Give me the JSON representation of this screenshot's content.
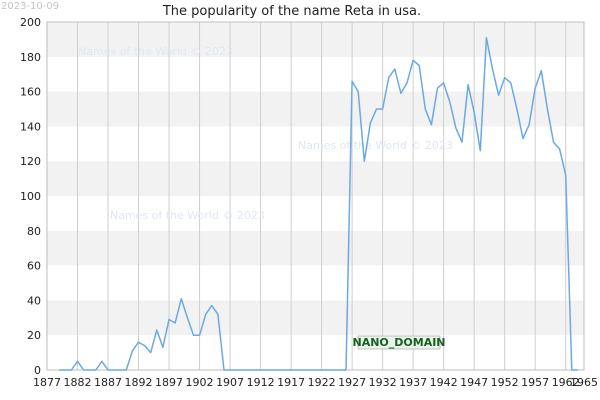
{
  "stamp": "2023-10-09",
  "watermark_text": "Names of the World © 2023",
  "badge_text": "NANO_DOMAIN",
  "chart_data": {
    "type": "line",
    "title": "The popularity of the name Reta in usa.",
    "xlabel": "",
    "ylabel": "",
    "xlim": [
      1877,
      1965
    ],
    "ylim": [
      0,
      200
    ],
    "x_ticks": [
      1877,
      1882,
      1887,
      1892,
      1897,
      1902,
      1907,
      1912,
      1917,
      1922,
      1927,
      1932,
      1937,
      1942,
      1947,
      1952,
      1957,
      1962,
      1965
    ],
    "y_ticks": [
      0,
      20,
      40,
      60,
      80,
      100,
      120,
      140,
      160,
      180,
      200
    ],
    "grid": true,
    "line_color": "#6aa9e6",
    "series": [
      {
        "x": [
          1879,
          1880,
          1881,
          1882,
          1883,
          1884,
          1885,
          1886,
          1887,
          1888,
          1889,
          1890,
          1891,
          1892,
          1893,
          1894,
          1895,
          1896,
          1897,
          1898,
          1899,
          1900,
          1901,
          1902,
          1903,
          1904,
          1905,
          1906,
          1907,
          1908,
          1909,
          1910,
          1911,
          1912,
          1913,
          1914,
          1915,
          1916,
          1917,
          1918,
          1919,
          1920,
          1921,
          1922,
          1923,
          1924,
          1925,
          1926,
          1927,
          1928,
          1929,
          1930,
          1931,
          1932,
          1933,
          1934,
          1935,
          1936,
          1937,
          1938,
          1939,
          1940,
          1941,
          1942,
          1943,
          1944,
          1945,
          1946,
          1947,
          1948,
          1949,
          1950,
          1951,
          1952,
          1953,
          1954,
          1955,
          1956,
          1957,
          1958,
          1959,
          1960,
          1961,
          1962,
          1963,
          1964
        ],
        "values": [
          0,
          0,
          0,
          5,
          0,
          0,
          0,
          5,
          0,
          0,
          0,
          0,
          11,
          16,
          14,
          10,
          23,
          13,
          29,
          27,
          41,
          30,
          20,
          20,
          32,
          37,
          32,
          0,
          0,
          0,
          0,
          0,
          0,
          0,
          0,
          0,
          0,
          0,
          0,
          0,
          0,
          0,
          0,
          0,
          0,
          0,
          0,
          0,
          166,
          160,
          120,
          142,
          150,
          150,
          168,
          173,
          159,
          165,
          178,
          175,
          150,
          141,
          162,
          165,
          154,
          139,
          131,
          164,
          148,
          126,
          191,
          173,
          158,
          168,
          165,
          150,
          133,
          141,
          162,
          172,
          150,
          131,
          127,
          112,
          0,
          0
        ]
      }
    ]
  }
}
